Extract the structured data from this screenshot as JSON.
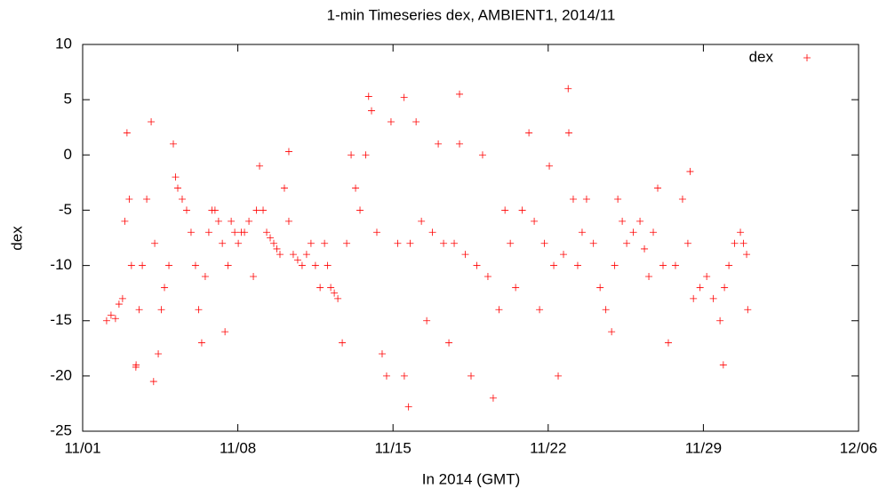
{
  "chart_data": {
    "type": "scatter",
    "title": "1-min Timeseries dex, AMBIENT1, 2014/11",
    "xlabel": "In 2014 (GMT)",
    "ylabel": "dex",
    "xlim": [
      1,
      36
    ],
    "xticks": [
      {
        "value": 1,
        "label": "11/01"
      },
      {
        "value": 8,
        "label": "11/08"
      },
      {
        "value": 15,
        "label": "11/15"
      },
      {
        "value": 22,
        "label": "11/22"
      },
      {
        "value": 29,
        "label": "11/29"
      },
      {
        "value": 36,
        "label": "12/06"
      }
    ],
    "ylim": [
      -25,
      10
    ],
    "yticks": [
      -25,
      -20,
      -15,
      -10,
      -5,
      0,
      5,
      10
    ],
    "grid": false,
    "legend": "top-right",
    "series": [
      {
        "name": "dex",
        "color": "#ff0000",
        "x": [
          2.08,
          2.28,
          2.48,
          2.64,
          2.8,
          2.9,
          3.0,
          3.1,
          3.2,
          3.41,
          3.55,
          3.69,
          3.89,
          4.09,
          4.25,
          4.41,
          4.55,
          4.69,
          4.89,
          5.09,
          5.19,
          5.29,
          5.49,
          5.69,
          5.89,
          6.09,
          6.23,
          6.37,
          6.53,
          6.69,
          6.83,
          6.97,
          7.13,
          7.3,
          7.42,
          7.56,
          7.7,
          7.86,
          8.02,
          8.16,
          8.3,
          8.5,
          8.7,
          8.84,
          8.98,
          9.14,
          9.3,
          9.46,
          9.62,
          9.76,
          9.9,
          10.1,
          10.3,
          10.5,
          10.7,
          10.9,
          11.1,
          11.3,
          11.5,
          11.71,
          11.91,
          12.05,
          12.19,
          12.35,
          12.51,
          12.71,
          12.91,
          13.11,
          13.31,
          13.51,
          13.77,
          14.03,
          14.27,
          14.51,
          14.71,
          14.91,
          15.21,
          15.51,
          15.77,
          16.04,
          16.28,
          16.52,
          16.78,
          17.04,
          17.28,
          17.52,
          17.76,
          18.0,
          18.26,
          18.52,
          18.78,
          19.04,
          19.28,
          19.52,
          19.78,
          20.05,
          20.29,
          20.53,
          20.83,
          21.13,
          21.37,
          21.61,
          21.83,
          22.05,
          22.25,
          22.45,
          22.69,
          22.93,
          23.13,
          23.33,
          23.53,
          23.73,
          24.04,
          24.34,
          24.6,
          24.86,
          25.0,
          25.14,
          25.34,
          25.54,
          25.84,
          26.14,
          26.34,
          26.54,
          26.74,
          26.94,
          27.18,
          27.42,
          27.74,
          28.06,
          28.3,
          28.55,
          28.85,
          29.15,
          29.45,
          29.75,
          29.95,
          30.15,
          30.41,
          30.67,
          30.81,
          30.95,
          4.2,
          3.4,
          15.7,
          15.5,
          18.0,
          22.9,
          28.4,
          29.9,
          13.9,
          10.3,
          31.0
        ],
        "values": [
          -15,
          -14.5,
          -14.8,
          -13.5,
          -13,
          -6,
          2,
          -4,
          -10,
          -19,
          -14,
          -10,
          -4,
          3,
          -8,
          -18,
          -14,
          -12,
          -10,
          1,
          -2,
          -3,
          -4,
          -5,
          -7,
          -10,
          -14,
          -17,
          -11,
          -7,
          -5,
          -5,
          -6,
          -8,
          -16,
          -10,
          -6,
          -7,
          -8,
          -7,
          -7,
          -6,
          -11,
          -5,
          -1,
          -5,
          -7,
          -7.5,
          -8,
          -8.5,
          -9,
          -3,
          -6,
          -9,
          -9.5,
          -10,
          -9,
          -8,
          -10,
          -12,
          -8,
          -10,
          -12,
          -12.5,
          -13,
          -17,
          -8,
          0,
          -3,
          -5,
          0,
          4,
          -7,
          -18,
          -20,
          3,
          -8,
          -20,
          -8,
          3,
          -6,
          -15,
          -7,
          1,
          -8,
          -17,
          -8,
          1,
          -9,
          -20,
          -10,
          0,
          -11,
          -22,
          -14,
          -5,
          -8,
          -12,
          -5,
          2,
          -6,
          -14,
          -8,
          -1,
          -10,
          -20,
          -9,
          2,
          -4,
          -10,
          -7,
          -4,
          -8,
          -12,
          -14,
          -16,
          -10,
          -4,
          -6,
          -8,
          -7,
          -6,
          -8.5,
          -11,
          -7,
          -3,
          -10,
          -17,
          -10,
          -4,
          -8,
          -13,
          -12,
          -11,
          -13,
          -15,
          -12,
          -10,
          -8,
          -7,
          -8,
          -9,
          -20.5,
          -19.2,
          -22.8,
          5.2,
          5.5,
          6,
          -1.5,
          -19,
          5.3,
          0.3,
          -14
        ]
      }
    ]
  }
}
